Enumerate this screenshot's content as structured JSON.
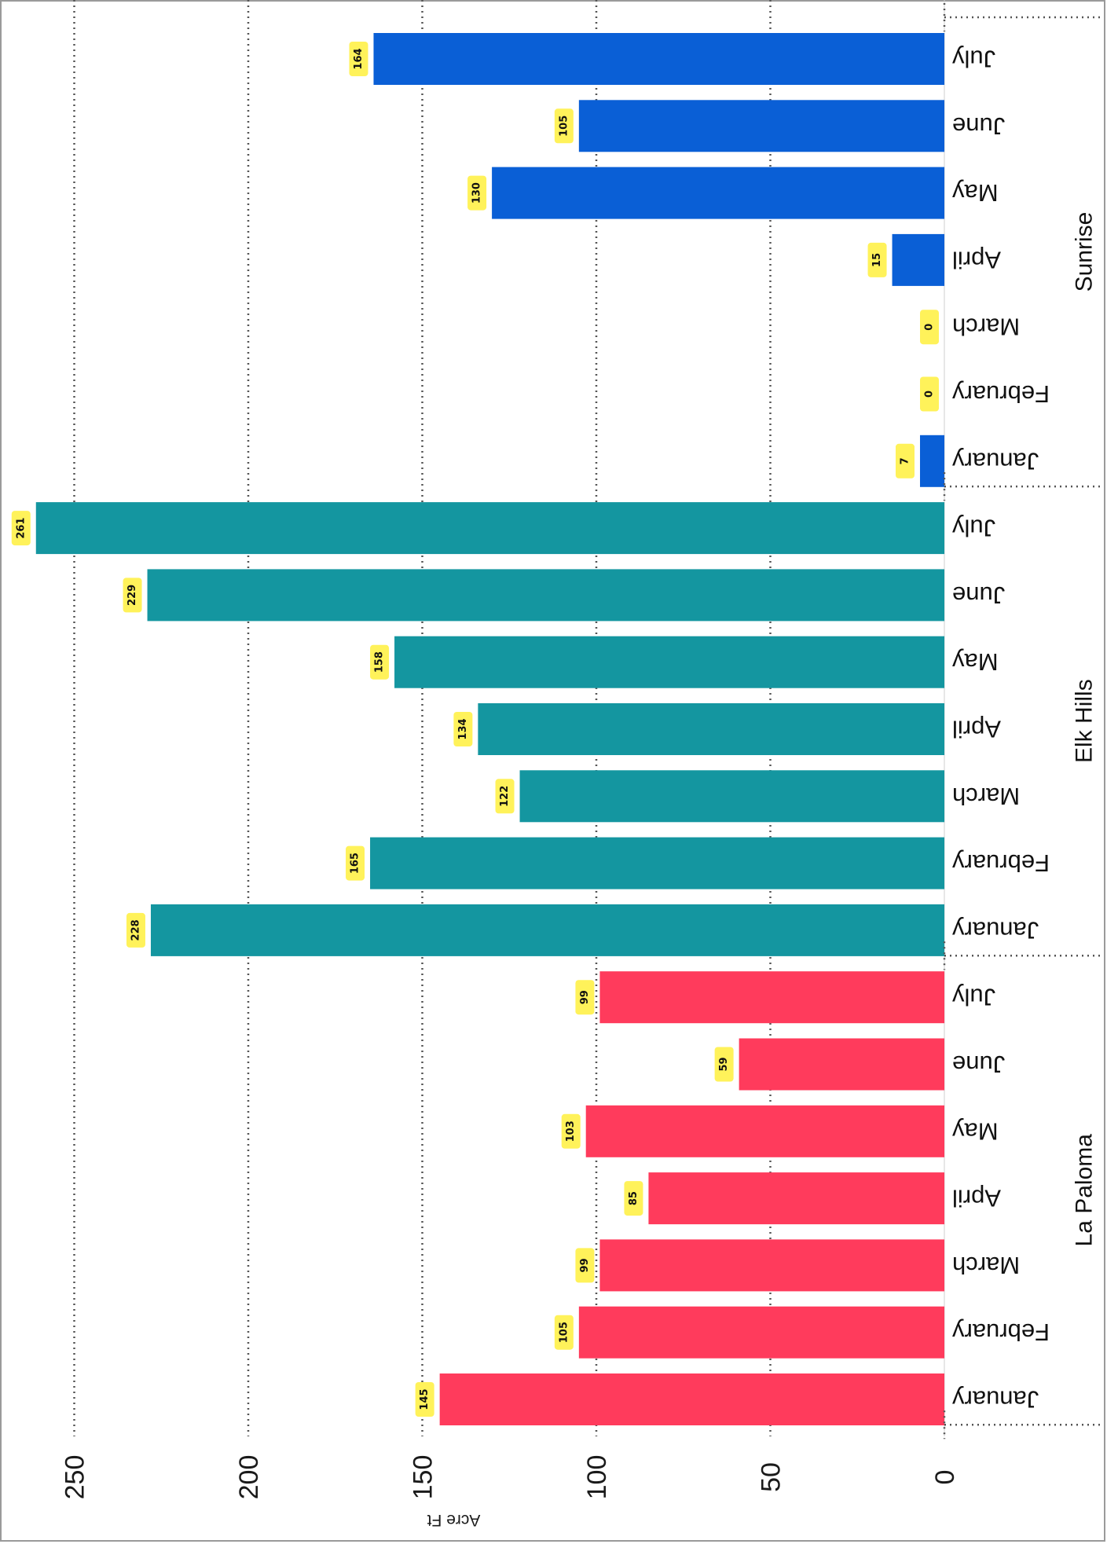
{
  "chart_data": {
    "type": "bar",
    "orientation": "horizontal",
    "ylabel": "Acre Ft",
    "ylim": [
      0,
      261
    ],
    "yticks": [
      0,
      50,
      100,
      150,
      200,
      250
    ],
    "grid": true,
    "groups": [
      {
        "name": "La Paloma",
        "color": "#ff3b5c",
        "categories": [
          "January",
          "February",
          "March",
          "April",
          "May",
          "June",
          "July"
        ],
        "values": [
          145,
          105,
          99,
          85,
          103,
          59,
          99
        ]
      },
      {
        "name": "Elk Hills",
        "color": "#1496a0",
        "categories": [
          "January",
          "February",
          "March",
          "April",
          "May",
          "June",
          "July"
        ],
        "values": [
          228,
          165,
          122,
          134,
          158,
          229,
          261
        ]
      },
      {
        "name": "Sunrise",
        "color": "#0a5fd6",
        "categories": [
          "January",
          "February",
          "March",
          "April",
          "May",
          "June",
          "July"
        ],
        "values": [
          7,
          0,
          0,
          15,
          130,
          105,
          164
        ]
      }
    ]
  }
}
